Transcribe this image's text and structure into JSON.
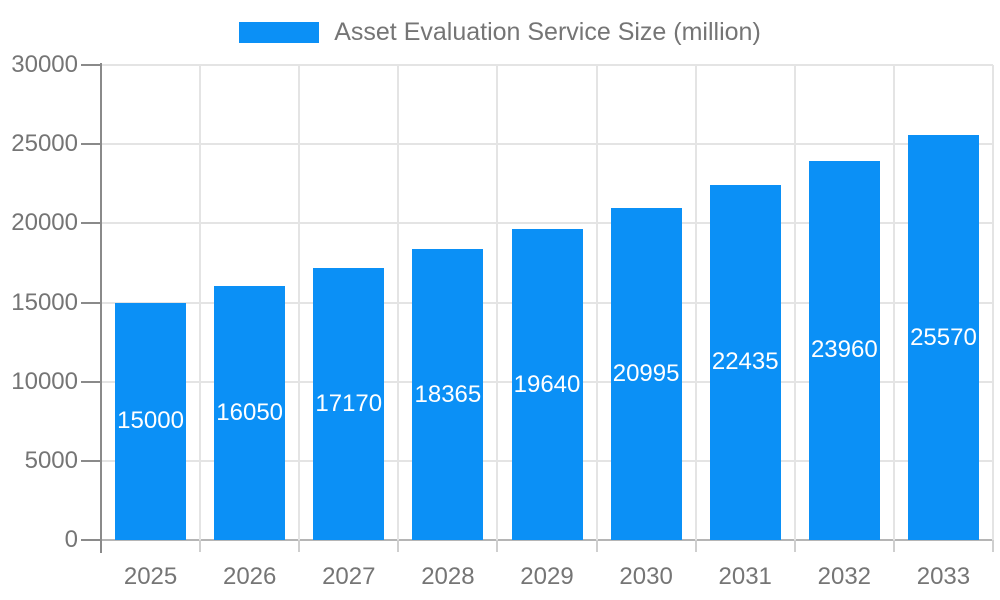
{
  "chart_data": {
    "type": "bar",
    "title": "Asset Evaluation Service Size (million)",
    "categories": [
      "2025",
      "2026",
      "2027",
      "2028",
      "2029",
      "2030",
      "2031",
      "2032",
      "2033"
    ],
    "values": [
      15000,
      16050,
      17170,
      18365,
      19640,
      20995,
      22435,
      23960,
      25570
    ],
    "xlabel": "",
    "ylabel": "",
    "ylim": [
      0,
      30000
    ],
    "yticks": [
      0,
      5000,
      10000,
      15000,
      20000,
      25000,
      30000
    ],
    "grid": true,
    "legend_position": "top-center",
    "bar_labels_visible": true,
    "bar_label_position": "inside-center",
    "colors": {
      "bar": "#0b90f6",
      "bar_label": "#ffffff",
      "axis_text": "#757575",
      "grid_line": "#e4e4e4",
      "axis_line": "#8a8a8a",
      "baseline": "#b5b5b5",
      "x_tick": "#cfcfcf",
      "background": "#ffffff"
    }
  }
}
